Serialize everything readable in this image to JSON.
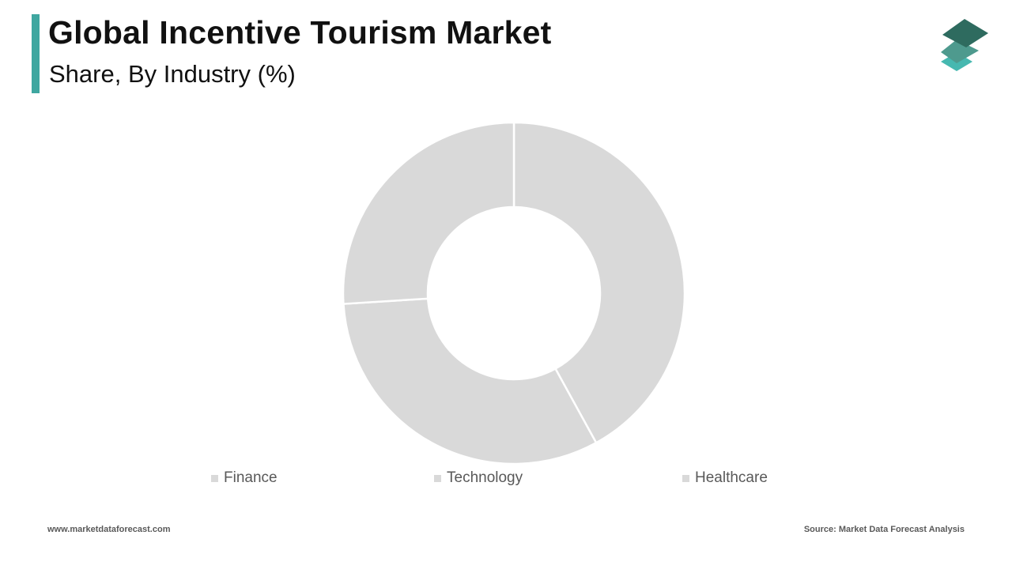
{
  "header": {
    "title": "Global Incentive Tourism Market",
    "subtitle": "Share, By Industry (%)"
  },
  "logo": {
    "icon": "stacked-layers-icon",
    "colors": [
      "#2e6b5f",
      "#4e9a8e",
      "#46b8b0"
    ]
  },
  "chart_data": {
    "type": "pie",
    "variant": "donut",
    "categories": [
      "Finance",
      "Technology",
      "Healthcare"
    ],
    "values": [
      42,
      32,
      26
    ],
    "colors": [
      "#d9d9d9",
      "#d9d9d9",
      "#d9d9d9"
    ],
    "legend": "bottom",
    "start_angle_deg": 0,
    "direction": "clockwise"
  },
  "footer": {
    "website": "www.marketdataforecast.com",
    "source": "Source: Market Data Forecast Analysis"
  }
}
